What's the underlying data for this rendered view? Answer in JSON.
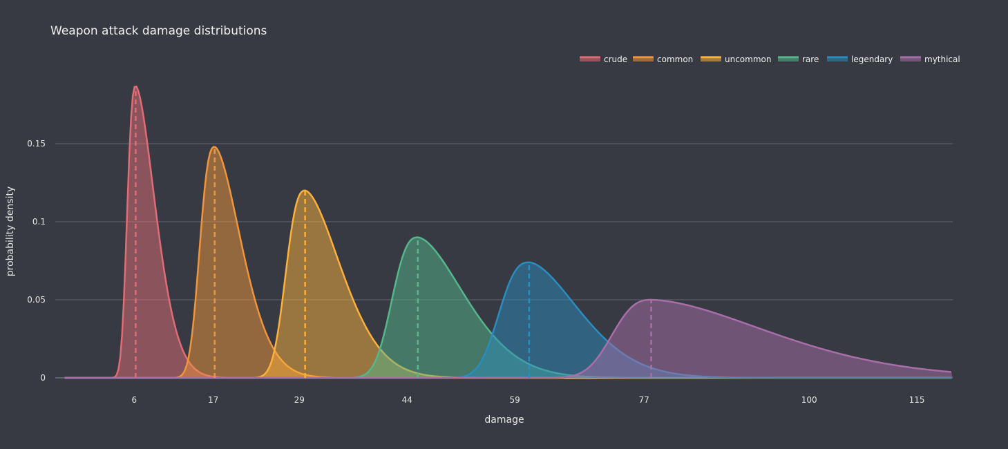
{
  "chart_data": {
    "type": "area",
    "title": "Weapon attack damage distributions",
    "xlabel": "damage",
    "ylabel": "probability density",
    "xlim": [
      -5,
      120
    ],
    "ylim": [
      0,
      0.2
    ],
    "x_ticks": [
      6,
      17,
      29,
      44,
      59,
      77,
      100,
      115
    ],
    "y_ticks": [
      0,
      0.05,
      0.1,
      0.15
    ],
    "y_tick_labels": [
      "0",
      "0.05",
      "0.1",
      "0.15"
    ],
    "grid": true,
    "legend_position": "top-right",
    "series": [
      {
        "name": "crude",
        "color": "#e06c75",
        "mode": 6.2,
        "left": 2.0,
        "right": 6.3,
        "peak": 0.187,
        "x": [
          2,
          4,
          6.2,
          8,
          10,
          12,
          14
        ],
        "y": [
          0,
          0.08,
          0.187,
          0.15,
          0.08,
          0.02,
          0.003
        ]
      },
      {
        "name": "common",
        "color": "#f0953c",
        "mode": 17.2,
        "left": 3.5,
        "right": 8.5,
        "peak": 0.148,
        "x": [
          13.5,
          15.5,
          17.2,
          19,
          21,
          23,
          25,
          26.5
        ],
        "y": [
          0,
          0.07,
          0.148,
          0.13,
          0.085,
          0.035,
          0.01,
          0.003
        ]
      },
      {
        "name": "uncommon",
        "color": "#fbb13c",
        "mode": 29.8,
        "left": 4.5,
        "right": 11.5,
        "peak": 0.12,
        "x": [
          25.3,
          28,
          29.8,
          32,
          34,
          36,
          38,
          40
        ],
        "y": [
          0,
          0.075,
          0.12,
          0.105,
          0.075,
          0.04,
          0.015,
          0.005
        ]
      },
      {
        "name": "rare",
        "color": "#56b68b",
        "mode": 45.5,
        "left": 6.0,
        "right": 15.0,
        "peak": 0.09,
        "x": [
          39.5,
          42,
          45.5,
          48,
          51,
          54,
          57
        ],
        "y": [
          0,
          0.04,
          0.09,
          0.078,
          0.05,
          0.022,
          0.006
        ]
      },
      {
        "name": "legendary",
        "color": "#2b8cbe",
        "mode": 61.0,
        "left": 7.0,
        "right": 16.0,
        "peak": 0.074,
        "x": [
          54,
          57,
          61,
          64,
          67,
          70,
          73
        ],
        "y": [
          0,
          0.025,
          0.074,
          0.065,
          0.045,
          0.022,
          0.006
        ]
      },
      {
        "name": "mythical",
        "color": "#a86ea8",
        "mode": 78.0,
        "left": 9.0,
        "right": 38.0,
        "peak": 0.05,
        "x": [
          69,
          73,
          78,
          85,
          92,
          100,
          110,
          120
        ],
        "y": [
          0,
          0.03,
          0.05,
          0.042,
          0.028,
          0.013,
          0.004,
          0.0005
        ]
      }
    ]
  }
}
